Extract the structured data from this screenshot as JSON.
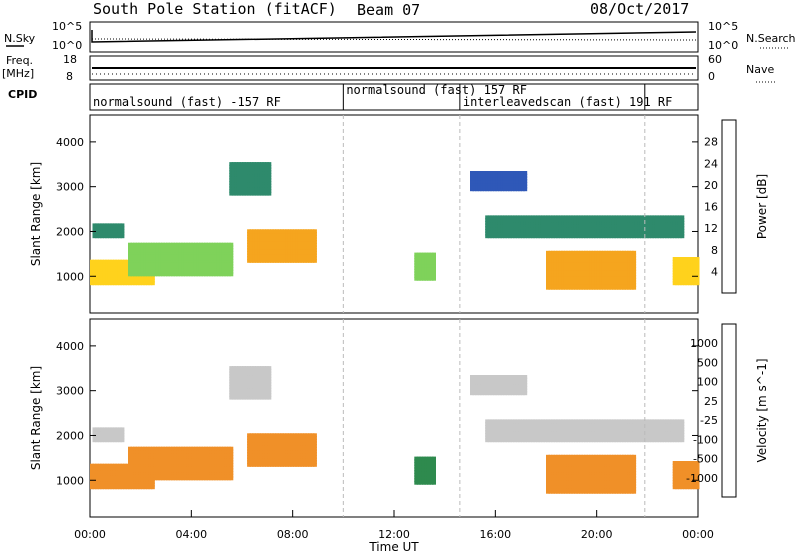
{
  "chart_data": {
    "type": "heatmap",
    "title": {
      "station": "South Pole Station (fitACF)",
      "beam": "Beam 07",
      "date": "08/Oct/2017"
    },
    "xlabel": "Time UT",
    "x_ticks": [
      "00:00",
      "04:00",
      "08:00",
      "12:00",
      "16:00",
      "20:00",
      "00:00"
    ],
    "xlim_hours": [
      0,
      24
    ],
    "summary_panels": {
      "nsky_label": "N.Sky",
      "nsky_ticks": [
        "10^5",
        "10^0"
      ],
      "nsearch_label": "N.Search",
      "nsearch_ticks": [
        "10^5",
        "10^0"
      ],
      "freq_label": "Freq.",
      "freq_unit": "[MHz]",
      "freq_ticks": [
        "18",
        "8"
      ],
      "nave_label": "Nave",
      "nave_ticks": [
        "60",
        "0"
      ],
      "cpid_label": "CPID"
    },
    "cpid_segments": [
      {
        "label": "normalsound (fast) -157 RF",
        "start_hour": 0.0,
        "end_hour": 10.0
      },
      {
        "label": "normalsound (fast) 157 RF",
        "start_hour": 10.0,
        "end_hour": 14.6
      },
      {
        "label": "interleavedscan (fast) 191 RF",
        "start_hour": 14.6,
        "end_hour": 21.9
      },
      {
        "label": "",
        "start_hour": 21.9,
        "end_hour": 24.0
      }
    ],
    "panels": [
      {
        "name": "power",
        "ylabel": "Slant Range [km]",
        "y_ticks": [
          1000,
          2000,
          3000,
          4000
        ],
        "ylim": [
          180,
          4600
        ],
        "colorbar_label": "Power [dB]",
        "colorbar_ticks": [
          "4",
          "8",
          "12",
          "16",
          "20",
          "24",
          "28"
        ],
        "colorbar_colors": [
          "#1b24f5",
          "#2f58b8",
          "#2e8a6c",
          "#7fd25a",
          "#ffd21c",
          "#f5a51e",
          "#f06418",
          "#e4141c"
        ]
      },
      {
        "name": "velocity",
        "ylabel": "Slant Range [km]",
        "y_ticks": [
          1000,
          2000,
          3000,
          4000
        ],
        "ylim": [
          180,
          4600
        ],
        "colorbar_label": "Velocity [m s^-1]",
        "colorbar_ticks": [
          "1000",
          "500",
          "100",
          "25",
          "-25",
          "-100",
          "-500",
          "-1000"
        ],
        "colorbar_colors": [
          "#2238c8",
          "#3a64b4",
          "#2e8a4e",
          "#7fd036",
          "#c8c8c8",
          "#f0c828",
          "#f09028",
          "#f06a14",
          "#e41414"
        ]
      }
    ],
    "echo_regions": [
      {
        "start_hour": 0.1,
        "end_hour": 1.3,
        "range_min_km": 1850,
        "range_max_km": 2150,
        "power_db": 10,
        "velocity": 10
      },
      {
        "start_hour": 0.0,
        "end_hour": 2.5,
        "range_min_km": 800,
        "range_max_km": 1300,
        "power_db": 18,
        "velocity": -200
      },
      {
        "start_hour": 1.5,
        "end_hour": 5.5,
        "range_min_km": 1000,
        "range_max_km": 1700,
        "power_db": 14,
        "velocity": -200
      },
      {
        "start_hour": 5.5,
        "end_hour": 7.0,
        "range_min_km": 2800,
        "range_max_km": 3500,
        "power_db": 8,
        "velocity": 10
      },
      {
        "start_hour": 6.2,
        "end_hour": 8.8,
        "range_min_km": 1300,
        "range_max_km": 2000,
        "power_db": 20,
        "velocity": -500
      },
      {
        "start_hour": 12.8,
        "end_hour": 13.5,
        "range_min_km": 900,
        "range_max_km": 1500,
        "power_db": 12,
        "velocity": 300
      },
      {
        "start_hour": 15.0,
        "end_hour": 17.2,
        "range_min_km": 2900,
        "range_max_km": 3300,
        "power_db": 6,
        "velocity": 10
      },
      {
        "start_hour": 15.6,
        "end_hour": 23.4,
        "range_min_km": 1850,
        "range_max_km": 2300,
        "power_db": 10,
        "velocity": -10
      },
      {
        "start_hour": 18.0,
        "end_hour": 21.5,
        "range_min_km": 700,
        "range_max_km": 1500,
        "power_db": 20,
        "velocity": -400
      },
      {
        "start_hour": 23.0,
        "end_hour": 24.0,
        "range_min_km": 800,
        "range_max_km": 1400,
        "power_db": 18,
        "velocity": -300
      }
    ]
  }
}
